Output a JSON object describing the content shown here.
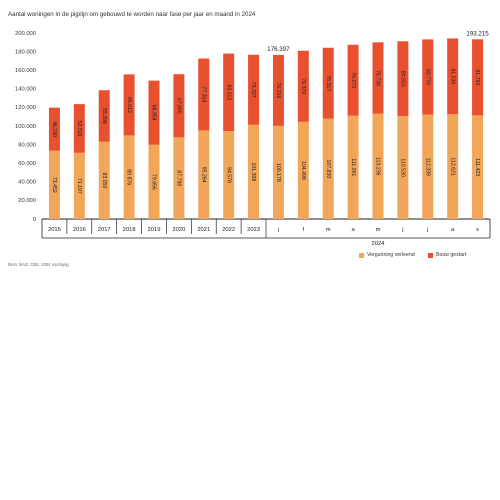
{
  "title": "Aantal woningen in de pijplijn om gebouwd te worden naar fase per jaar en maand in 2024",
  "source": "Bron: BAG, CBS, 2024 voorlopig",
  "colors": {
    "vergunning": "#f2a65a",
    "bouw": "#e8502f",
    "axis": "#222222",
    "grid": "#e6e6e6"
  },
  "chart_data": {
    "type": "bar",
    "stacked": true,
    "categories": [
      "2015",
      "2016",
      "2017",
      "2018",
      "2019",
      "2020",
      "2021",
      "2022",
      "2023",
      "j",
      "f",
      "m",
      "a",
      "m",
      "j",
      "j",
      "a",
      "s"
    ],
    "group_label": "2024",
    "series": [
      {
        "name": "Vergunning verleend",
        "values": [
          73452,
          71197,
          83050,
          89876,
          79856,
          87798,
          95264,
          94578,
          101308,
          100178,
          104498,
          107830,
          111091,
          113236,
          110530,
          112339,
          112621,
          111423
        ],
        "labels": [
          "73.452",
          "71.197",
          "83.050",
          "89.876",
          "79.856",
          "87.798",
          "95.264",
          "94.578",
          "101.308",
          "100.178",
          "104.498",
          "107.830",
          "111.091",
          "113.236",
          "110.530",
          "112.339",
          "112.621",
          "111.423"
        ]
      },
      {
        "name": "Bouw gestart",
        "values": [
          46290,
          52319,
          55398,
          65612,
          68954,
          67895,
          77314,
          83312,
          75327,
          76219,
          76370,
          76317,
          76273,
          76738,
          80553,
          80776,
          81536,
          81792
        ],
        "labels": [
          "46.290",
          "52.319",
          "55.398",
          "65.612",
          "68.954",
          "67.895",
          "77.314",
          "83.312",
          "75.327",
          "76.219",
          "76.370",
          "76.317",
          "76.273",
          "76.738",
          "80.553",
          "80.776",
          "81.536",
          "81.792"
        ]
      }
    ],
    "annotations": [
      {
        "category_index": 9,
        "text": "176.397"
      },
      {
        "category_index": 17,
        "text": "193.215"
      }
    ],
    "yticks": [
      "0",
      "20.000",
      "40.000",
      "60.000",
      "80.000",
      "100.000",
      "120.000",
      "140.000",
      "160.000",
      "180.000",
      "200.000"
    ],
    "ylim": [
      0,
      200000
    ],
    "grid": false,
    "legend": "bottom-right"
  }
}
